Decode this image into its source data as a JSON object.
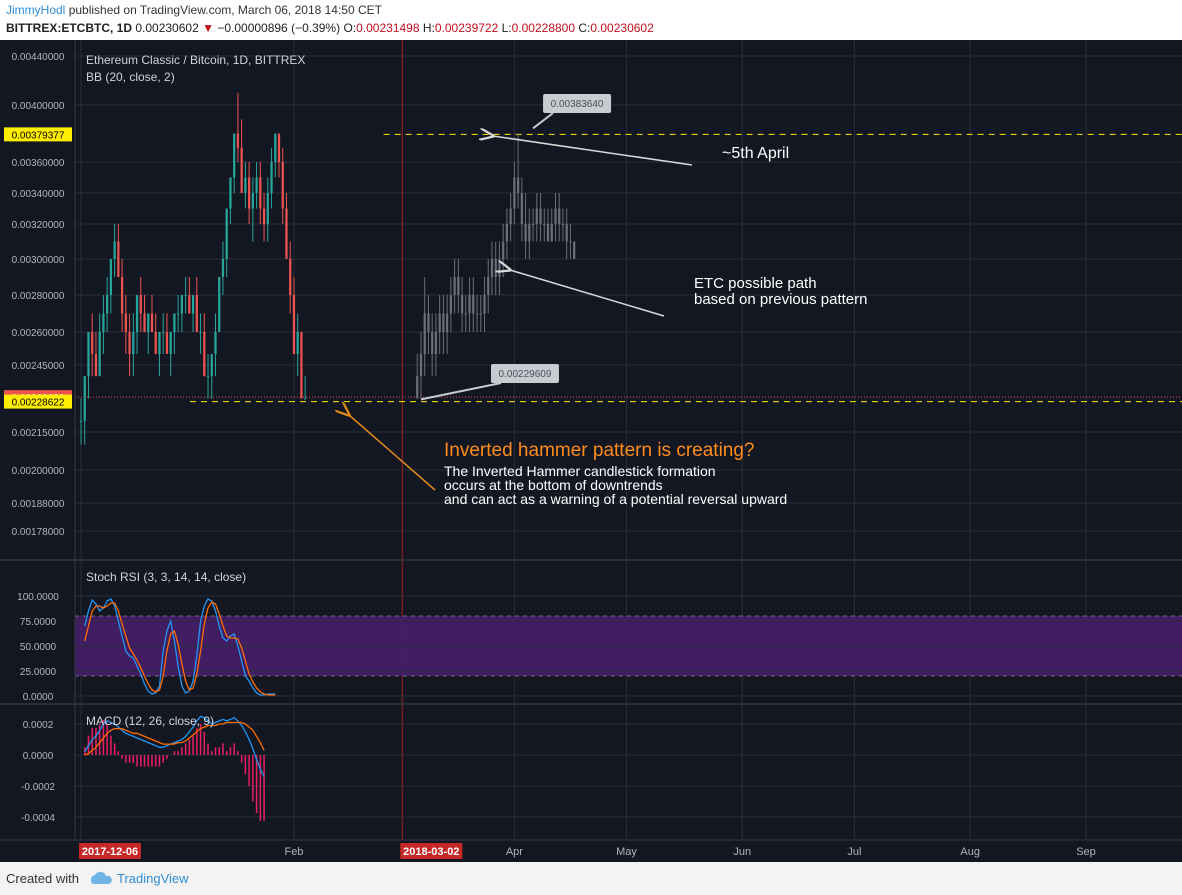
{
  "header": {
    "author": "JimmyHodl",
    "published": "published on TradingView.com, March 06, 2018 14:50 CET",
    "symbol": "BITTREX:ETCBTC, 1D",
    "last": "0.00230602",
    "change": "−0.00000896 (−0.39%)",
    "o_label": "O:",
    "o": "0.00231498",
    "h_label": "H:",
    "h": "0.00239722",
    "l_label": "L:",
    "l": "0.00228800",
    "c_label": "C:",
    "c": "0.00230602"
  },
  "footer": {
    "created": "Created with",
    "brand": "TradingView"
  },
  "colors": {
    "background": "#131722",
    "up": "#26a69a",
    "down": "#ef5350",
    "projection": "#6a6f7a",
    "stoch_k": "#2196f3",
    "stoch_d": "#ff6d00",
    "macd": "#2196f3",
    "signal": "#ff6d00",
    "hist": "#e91e63",
    "orange_text": "#ff8c1a",
    "yellow": "#ffee58"
  },
  "chart_data": [
    {
      "type": "candlestick",
      "title": "Ethereum Classic / Bitcoin, 1D, BITTREX",
      "indicator": "BB (20, close, 2)",
      "y_ticks": [
        "0.00440000",
        "0.00400000",
        "0.00360000",
        "0.00340000",
        "0.00320000",
        "0.00300000",
        "0.00280000",
        "0.00260000",
        "0.00245000",
        "0.00215000",
        "0.00200000",
        "0.00188000",
        "0.00178000"
      ],
      "y_tick_values": [
        0.0044,
        0.004,
        0.0036,
        0.0034,
        0.0032,
        0.003,
        0.0028,
        0.0026,
        0.00245,
        0.00215,
        0.002,
        0.00188,
        0.00178
      ],
      "x_ticks": [
        "2017-12-06",
        "Feb",
        "2018-03-02",
        "Apr",
        "May",
        "Jun",
        "Jul",
        "Aug",
        "Sep"
      ],
      "x_tick_dates": [
        "2017-12-06",
        "2018-02-01",
        "2018-03-02",
        "2018-04-01",
        "2018-05-01",
        "2018-06-01",
        "2018-07-01",
        "2018-08-01",
        "2018-09-01"
      ],
      "price_labels": [
        {
          "text": "0.00379377",
          "value": 0.00379377,
          "color": "#ffee00"
        },
        {
          "text": "0.00230602",
          "value": 0.00230602,
          "color": "#ef5350"
        },
        {
          "text": "0.00228622",
          "value": 0.00228622,
          "color": "#ffee00"
        }
      ],
      "callouts": [
        {
          "text": "0.00383640",
          "value": 0.0038364,
          "date": "2018-04-06"
        },
        {
          "text": "0.00229609",
          "value": 0.00229609,
          "date": "2018-03-07"
        }
      ],
      "horizontal_lines": [
        {
          "value": 0.00379377,
          "style": "dashed",
          "color": "#ffee00"
        },
        {
          "value": 0.00228622,
          "style": "dashed",
          "color": "#ffee00"
        },
        {
          "value": 0.00230602,
          "style": "dotted",
          "color": "#ef5350"
        }
      ],
      "annotations": {
        "april": "~5th April",
        "path_line1": "ETC possible path",
        "path_line2": "based on previous pattern",
        "hammer_title": "Inverted hammer pattern is creating?",
        "hammer_line1": "The Inverted Hammer candlestick formation",
        "hammer_line2": "occurs at the bottom of downtrends",
        "hammer_line3": "and can act as a warning of a potential reversal upward"
      },
      "candles_start": "2017-12-06",
      "candles": [
        [
          0.0022,
          0.0023,
          0.0021,
          0.0022
        ],
        [
          0.0022,
          0.0024,
          0.0021,
          0.0024
        ],
        [
          0.0024,
          0.0026,
          0.0023,
          0.0026
        ],
        [
          0.0026,
          0.0027,
          0.0024,
          0.0025
        ],
        [
          0.0025,
          0.0026,
          0.0024,
          0.0024
        ],
        [
          0.0024,
          0.0027,
          0.0024,
          0.0026
        ],
        [
          0.0026,
          0.0028,
          0.0025,
          0.0027
        ],
        [
          0.0027,
          0.0029,
          0.0026,
          0.0028
        ],
        [
          0.0028,
          0.003,
          0.0027,
          0.003
        ],
        [
          0.003,
          0.0032,
          0.0029,
          0.0031
        ],
        [
          0.0031,
          0.0032,
          0.0029,
          0.0029
        ],
        [
          0.0029,
          0.003,
          0.0026,
          0.0027
        ],
        [
          0.0027,
          0.0028,
          0.0025,
          0.0026
        ],
        [
          0.0026,
          0.0027,
          0.0024,
          0.0025
        ],
        [
          0.0025,
          0.0027,
          0.0024,
          0.0026
        ],
        [
          0.0026,
          0.0028,
          0.0025,
          0.0028
        ],
        [
          0.0028,
          0.0029,
          0.0026,
          0.0027
        ],
        [
          0.0027,
          0.0028,
          0.0026,
          0.0026
        ],
        [
          0.0026,
          0.0027,
          0.0025,
          0.0027
        ],
        [
          0.0027,
          0.0028,
          0.0026,
          0.0026
        ],
        [
          0.0026,
          0.0027,
          0.0025,
          0.0025
        ],
        [
          0.0025,
          0.0026,
          0.0024,
          0.0026
        ],
        [
          0.0026,
          0.0027,
          0.0025,
          0.0026
        ],
        [
          0.0026,
          0.0027,
          0.0025,
          0.0025
        ],
        [
          0.0025,
          0.0026,
          0.0024,
          0.0026
        ],
        [
          0.0026,
          0.0027,
          0.0025,
          0.0027
        ],
        [
          0.0027,
          0.0028,
          0.0026,
          0.0027
        ],
        [
          0.0027,
          0.0028,
          0.0026,
          0.0028
        ],
        [
          0.0028,
          0.0029,
          0.0027,
          0.0028
        ],
        [
          0.0028,
          0.0029,
          0.0027,
          0.0027
        ],
        [
          0.0027,
          0.0028,
          0.0026,
          0.0028
        ],
        [
          0.0028,
          0.0029,
          0.0026,
          0.0026
        ],
        [
          0.0026,
          0.0027,
          0.0025,
          0.0026
        ],
        [
          0.0026,
          0.0027,
          0.0024,
          0.0024
        ],
        [
          0.0024,
          0.0025,
          0.0023,
          0.0024
        ],
        [
          0.0024,
          0.0025,
          0.0023,
          0.0025
        ],
        [
          0.0025,
          0.0027,
          0.0024,
          0.0026
        ],
        [
          0.0026,
          0.0029,
          0.0026,
          0.0029
        ],
        [
          0.0029,
          0.0031,
          0.0028,
          0.003
        ],
        [
          0.003,
          0.0033,
          0.0029,
          0.0033
        ],
        [
          0.0033,
          0.0035,
          0.0032,
          0.0035
        ],
        [
          0.0035,
          0.0038,
          0.0034,
          0.0038
        ],
        [
          0.0038,
          0.0041,
          0.0036,
          0.0037
        ],
        [
          0.0037,
          0.0039,
          0.0034,
          0.0034
        ],
        [
          0.0034,
          0.0036,
          0.0033,
          0.0035
        ],
        [
          0.0035,
          0.0036,
          0.0032,
          0.0033
        ],
        [
          0.0033,
          0.0035,
          0.0031,
          0.0034
        ],
        [
          0.0034,
          0.0036,
          0.0033,
          0.0035
        ],
        [
          0.0035,
          0.0036,
          0.0032,
          0.0033
        ],
        [
          0.0033,
          0.0034,
          0.0031,
          0.0032
        ],
        [
          0.0032,
          0.0035,
          0.0031,
          0.0034
        ],
        [
          0.0034,
          0.0037,
          0.0033,
          0.0036
        ],
        [
          0.0036,
          0.0038,
          0.0035,
          0.0038
        ],
        [
          0.0038,
          0.0038,
          0.0035,
          0.0036
        ],
        [
          0.0036,
          0.0037,
          0.0032,
          0.0033
        ],
        [
          0.0033,
          0.0034,
          0.003,
          0.003
        ],
        [
          0.003,
          0.0031,
          0.0027,
          0.0028
        ],
        [
          0.0028,
          0.0029,
          0.0025,
          0.0025
        ],
        [
          0.0025,
          0.0027,
          0.0024,
          0.0026
        ],
        [
          0.0026,
          0.0026,
          0.0023,
          0.0023
        ],
        [
          0.0023,
          0.0024,
          0.0023,
          0.0023
        ]
      ],
      "projection_start": "2018-03-06",
      "projection": [
        [
          0.0023,
          0.0025,
          0.0023,
          0.0024
        ],
        [
          0.0024,
          0.0026,
          0.0023,
          0.0025
        ],
        [
          0.0025,
          0.0029,
          0.0024,
          0.0027
        ],
        [
          0.0027,
          0.0028,
          0.0025,
          0.0026
        ],
        [
          0.0026,
          0.0027,
          0.0024,
          0.0025
        ],
        [
          0.0025,
          0.0027,
          0.0024,
          0.0026
        ],
        [
          0.0026,
          0.0028,
          0.0025,
          0.0027
        ],
        [
          0.0027,
          0.0028,
          0.0025,
          0.0026
        ],
        [
          0.0026,
          0.0028,
          0.0025,
          0.0027
        ],
        [
          0.0027,
          0.0029,
          0.0026,
          0.0028
        ],
        [
          0.0028,
          0.003,
          0.0027,
          0.0029
        ],
        [
          0.0029,
          0.003,
          0.0027,
          0.0028
        ],
        [
          0.0028,
          0.0029,
          0.0026,
          0.0027
        ],
        [
          0.0027,
          0.0028,
          0.0026,
          0.0027
        ],
        [
          0.0027,
          0.0029,
          0.0026,
          0.0028
        ],
        [
          0.0028,
          0.0029,
          0.0026,
          0.0027
        ],
        [
          0.0027,
          0.0028,
          0.0026,
          0.0027
        ],
        [
          0.0027,
          0.0028,
          0.0026,
          0.0027
        ],
        [
          0.0027,
          0.0029,
          0.0026,
          0.0028
        ],
        [
          0.0028,
          0.003,
          0.0027,
          0.0029
        ],
        [
          0.0029,
          0.0031,
          0.0028,
          0.003
        ],
        [
          0.003,
          0.0031,
          0.0028,
          0.0029
        ],
        [
          0.0029,
          0.0031,
          0.0028,
          0.003
        ],
        [
          0.003,
          0.0032,
          0.0029,
          0.0031
        ],
        [
          0.0031,
          0.0033,
          0.003,
          0.0032
        ],
        [
          0.0032,
          0.0034,
          0.0031,
          0.0033
        ],
        [
          0.0033,
          0.0036,
          0.0032,
          0.0035
        ],
        [
          0.0035,
          0.0038,
          0.0033,
          0.0034
        ],
        [
          0.0034,
          0.0035,
          0.0031,
          0.0032
        ],
        [
          0.0032,
          0.0034,
          0.003,
          0.0031
        ],
        [
          0.0031,
          0.0033,
          0.003,
          0.0032
        ],
        [
          0.0032,
          0.0033,
          0.0031,
          0.0032
        ],
        [
          0.0032,
          0.0034,
          0.0031,
          0.0033
        ],
        [
          0.0033,
          0.0034,
          0.0031,
          0.0032
        ],
        [
          0.0032,
          0.0033,
          0.0031,
          0.0032
        ],
        [
          0.0032,
          0.0033,
          0.0031,
          0.0031
        ],
        [
          0.0031,
          0.0033,
          0.0031,
          0.0032
        ],
        [
          0.0032,
          0.0034,
          0.0031,
          0.0033
        ],
        [
          0.0033,
          0.0034,
          0.0031,
          0.0032
        ],
        [
          0.0032,
          0.0033,
          0.0031,
          0.0032
        ],
        [
          0.0032,
          0.0033,
          0.003,
          0.0031
        ],
        [
          0.0031,
          0.0032,
          0.003,
          0.0031
        ],
        [
          0.0031,
          0.0031,
          0.003,
          0.003
        ]
      ]
    },
    {
      "type": "line",
      "title": "Stoch RSI (3, 3, 14, 14, close)",
      "y_ticks": [
        "100.0000",
        "75.0000",
        "50.0000",
        "25.0000",
        "0.0000"
      ],
      "y_tick_values": [
        100,
        75,
        50,
        25,
        0
      ],
      "band": [
        20,
        80
      ],
      "ylim": [
        0,
        100
      ],
      "x_start": "2017-12-06",
      "series": [
        {
          "name": "K",
          "color": "#2196f3",
          "values": [
            70,
            85,
            96,
            92,
            85,
            88,
            95,
            97,
            90,
            75,
            60,
            45,
            40,
            38,
            30,
            22,
            12,
            5,
            2,
            3,
            10,
            45,
            65,
            75,
            55,
            30,
            10,
            3,
            5,
            15,
            40,
            75,
            90,
            97,
            95,
            85,
            70,
            58,
            55,
            60,
            62,
            50,
            35,
            20,
            15,
            8,
            3,
            1,
            1,
            2,
            2,
            2
          ]
        },
        {
          "name": "D",
          "color": "#ff6d00",
          "values": [
            55,
            70,
            85,
            90,
            90,
            88,
            90,
            93,
            93,
            85,
            72,
            60,
            48,
            42,
            36,
            28,
            20,
            12,
            6,
            4,
            6,
            20,
            45,
            62,
            65,
            52,
            32,
            15,
            6,
            8,
            22,
            45,
            72,
            88,
            94,
            92,
            82,
            70,
            60,
            58,
            58,
            57,
            48,
            35,
            22,
            14,
            8,
            4,
            2,
            1,
            1,
            1
          ]
        }
      ]
    },
    {
      "type": "line",
      "title": "MACD (12, 26, close, 9)",
      "y_ticks": [
        "0.0002",
        "0.0000",
        "-0.0002",
        "-0.0004"
      ],
      "y_tick_values": [
        0.0002,
        0,
        -0.0002,
        -0.0004
      ],
      "ylim": [
        -0.0005,
        0.0003
      ],
      "x_start": "2017-12-06",
      "series": [
        {
          "name": "MACD",
          "color": "#2196f3",
          "values": [
            2e-05,
            6e-05,
            0.0001,
            0.00012,
            0.00016,
            0.0002,
            0.00022,
            0.00021,
            0.0002,
            0.00018,
            0.00016,
            0.00014,
            0.00013,
            0.00012,
            0.00011,
            0.0001,
            9e-05,
            8e-05,
            7e-05,
            6e-05,
            5e-05,
            5e-05,
            6e-05,
            7e-05,
            8e-05,
            9e-05,
            0.0001,
            0.00012,
            0.00015,
            0.00018,
            0.00022,
            0.00025,
            0.00024,
            0.00022,
            0.0002,
            0.00021,
            0.00022,
            0.00023,
            0.00022,
            0.00023,
            0.00024,
            0.00022,
            0.00019,
            0.00015,
            0.0001,
            4e-05,
            -3e-05,
            -9e-05,
            -0.00014
          ]
        },
        {
          "name": "Signal",
          "color": "#ff6d00",
          "values": [
            0,
            1e-05,
            3e-05,
            5e-05,
            8e-05,
            0.00011,
            0.00014,
            0.00016,
            0.00017,
            0.00017,
            0.00017,
            0.00016,
            0.00015,
            0.00014,
            0.00014,
            0.00013,
            0.00012,
            0.00011,
            0.0001,
            9e-05,
            8e-05,
            7e-05,
            7e-05,
            7e-05,
            7e-05,
            8e-05,
            8e-05,
            9e-05,
            0.00011,
            0.00013,
            0.00015,
            0.00017,
            0.00018,
            0.00019,
            0.00019,
            0.00019,
            0.0002,
            0.0002,
            0.00021,
            0.00021,
            0.00021,
            0.00021,
            0.00021,
            0.0002,
            0.00018,
            0.00016,
            0.00012,
            8e-05,
            3e-05
          ]
        }
      ]
    }
  ]
}
